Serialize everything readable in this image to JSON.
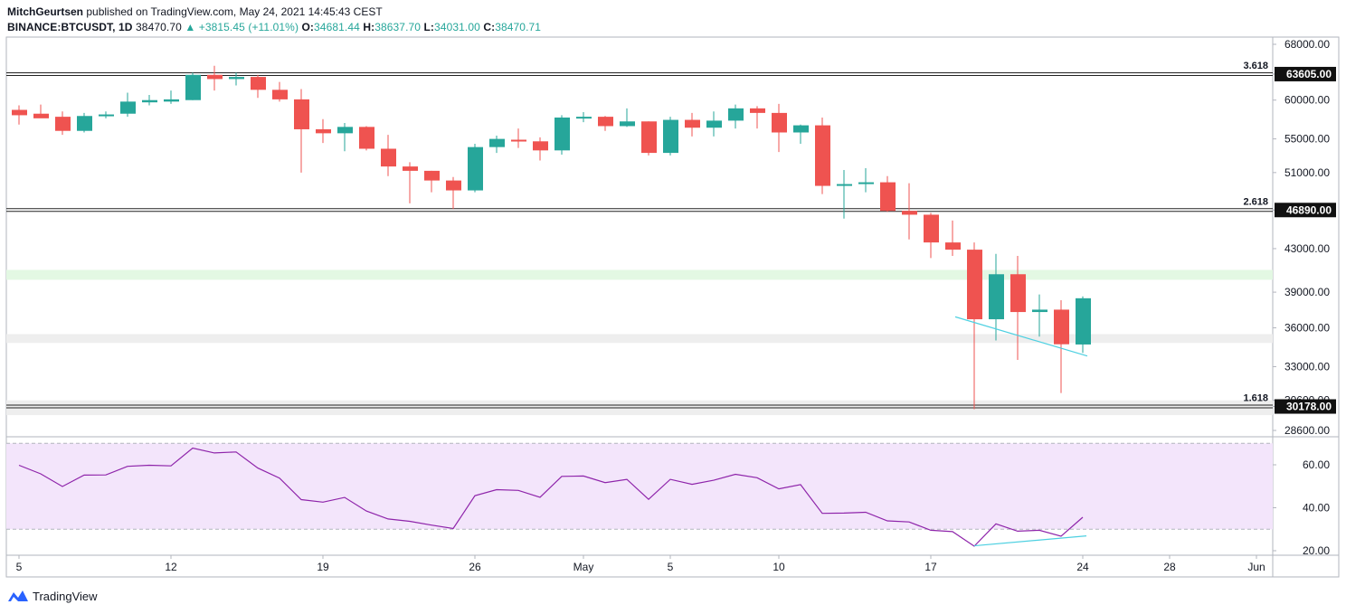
{
  "header": {
    "author": "MitchGeurtsen",
    "published": "published on TradingView.com, May 24, 2021 14:45:43 CEST",
    "symbol": "BINANCE:BTCUSDT, 1D",
    "last": "38470.70",
    "change": "▲ +3815.45 (+11.01%)",
    "o_label": "O:",
    "o": "34681.44",
    "h_label": "H:",
    "h": "38637.70",
    "l_label": "L:",
    "l": "34031.00",
    "c_label": "C:",
    "c": "38470.71"
  },
  "footer": {
    "brand": "TradingView"
  },
  "colors": {
    "up": "#26a69a",
    "down": "#ef5350",
    "rsi": "#8e24aa",
    "trend": "#4dd0e1",
    "rsi_band": "#f3e5fb",
    "green_zone": "#e3f8e3",
    "gray_zone": "#eeeeee"
  },
  "chart_data": {
    "type": "candlestick",
    "price_axis_ticks": [
      "68000.00",
      "63605.00",
      "60000.00",
      "55000.00",
      "51000.00",
      "46890.00",
      "43000.00",
      "39000.00",
      "36000.00",
      "33000.00",
      "30600.00",
      "30178.00",
      "28600.00"
    ],
    "rsi_axis_ticks": [
      "60.00",
      "40.00",
      "20.00"
    ],
    "x_tick_labels": [
      "5",
      "12",
      "19",
      "26",
      "May",
      "5",
      "10",
      "17",
      "24",
      "28",
      "Jun"
    ],
    "fib_levels": [
      {
        "label": "3.618",
        "value": 63605
      },
      {
        "label": "2.618",
        "value": 46890
      },
      {
        "label": "1.618",
        "value": 30178
      }
    ],
    "zones": [
      {
        "name": "green",
        "from": 40100,
        "to": 41000
      },
      {
        "name": "gray",
        "from": 34800,
        "to": 35500
      },
      {
        "name": "gray",
        "from": 29600,
        "to": 30600
      }
    ],
    "candles": [
      {
        "date": "2021-04-05",
        "o": 58700,
        "h": 59300,
        "l": 56800,
        "c": 58000
      },
      {
        "date": "2021-04-06",
        "o": 58200,
        "h": 59400,
        "l": 57700,
        "c": 57600
      },
      {
        "date": "2021-04-07",
        "o": 57800,
        "h": 58500,
        "l": 55500,
        "c": 56000
      },
      {
        "date": "2021-04-08",
        "o": 56000,
        "h": 58300,
        "l": 55800,
        "c": 57900
      },
      {
        "date": "2021-04-09",
        "o": 57900,
        "h": 58500,
        "l": 57600,
        "c": 58100
      },
      {
        "date": "2021-04-10",
        "o": 58200,
        "h": 61000,
        "l": 57800,
        "c": 59800
      },
      {
        "date": "2021-04-11",
        "o": 59700,
        "h": 60700,
        "l": 59300,
        "c": 60000
      },
      {
        "date": "2021-04-12",
        "o": 59800,
        "h": 61300,
        "l": 59500,
        "c": 60100
      },
      {
        "date": "2021-04-13",
        "o": 60000,
        "h": 63800,
        "l": 60000,
        "c": 63500
      },
      {
        "date": "2021-04-14",
        "o": 63500,
        "h": 64800,
        "l": 61300,
        "c": 62900
      },
      {
        "date": "2021-04-15",
        "o": 62900,
        "h": 63800,
        "l": 62000,
        "c": 63200
      },
      {
        "date": "2021-04-16",
        "o": 63200,
        "h": 63500,
        "l": 60300,
        "c": 61400
      },
      {
        "date": "2021-04-17",
        "o": 61400,
        "h": 62500,
        "l": 59800,
        "c": 60100
      },
      {
        "date": "2021-04-18",
        "o": 60100,
        "h": 61500,
        "l": 51000,
        "c": 56200
      },
      {
        "date": "2021-04-19",
        "o": 56200,
        "h": 57500,
        "l": 54500,
        "c": 55700
      },
      {
        "date": "2021-04-20",
        "o": 55700,
        "h": 57000,
        "l": 53500,
        "c": 56500
      },
      {
        "date": "2021-04-21",
        "o": 56500,
        "h": 56600,
        "l": 53600,
        "c": 53800
      },
      {
        "date": "2021-04-22",
        "o": 53800,
        "h": 55500,
        "l": 50600,
        "c": 51700
      },
      {
        "date": "2021-04-23",
        "o": 51700,
        "h": 52200,
        "l": 47600,
        "c": 51200
      },
      {
        "date": "2021-04-24",
        "o": 51200,
        "h": 51200,
        "l": 48800,
        "c": 50100
      },
      {
        "date": "2021-04-25",
        "o": 50100,
        "h": 50500,
        "l": 47000,
        "c": 49000
      },
      {
        "date": "2021-04-26",
        "o": 49000,
        "h": 54400,
        "l": 48800,
        "c": 54000
      },
      {
        "date": "2021-04-27",
        "o": 54000,
        "h": 55400,
        "l": 53300,
        "c": 55000
      },
      {
        "date": "2021-04-28",
        "o": 54900,
        "h": 56300,
        "l": 53900,
        "c": 54700
      },
      {
        "date": "2021-04-29",
        "o": 54700,
        "h": 55200,
        "l": 52400,
        "c": 53600
      },
      {
        "date": "2021-04-30",
        "o": 53600,
        "h": 58000,
        "l": 53100,
        "c": 57700
      },
      {
        "date": "2021-05-01",
        "o": 57700,
        "h": 58400,
        "l": 57100,
        "c": 57800
      },
      {
        "date": "2021-05-02",
        "o": 57800,
        "h": 57900,
        "l": 56000,
        "c": 56600
      },
      {
        "date": "2021-05-03",
        "o": 56600,
        "h": 58900,
        "l": 56500,
        "c": 57200
      },
      {
        "date": "2021-05-04",
        "o": 57200,
        "h": 57200,
        "l": 53000,
        "c": 53300
      },
      {
        "date": "2021-05-05",
        "o": 53300,
        "h": 57800,
        "l": 53000,
        "c": 57400
      },
      {
        "date": "2021-05-06",
        "o": 57400,
        "h": 58300,
        "l": 55300,
        "c": 56400
      },
      {
        "date": "2021-05-07",
        "o": 56400,
        "h": 58500,
        "l": 55300,
        "c": 57300
      },
      {
        "date": "2021-05-08",
        "o": 57300,
        "h": 59400,
        "l": 56300,
        "c": 58900
      },
      {
        "date": "2021-05-09",
        "o": 58900,
        "h": 59200,
        "l": 56300,
        "c": 58300
      },
      {
        "date": "2021-05-10",
        "o": 58300,
        "h": 59500,
        "l": 53400,
        "c": 55800
      },
      {
        "date": "2021-05-11",
        "o": 55800,
        "h": 56800,
        "l": 54400,
        "c": 56700
      },
      {
        "date": "2021-05-12",
        "o": 56700,
        "h": 57700,
        "l": 48600,
        "c": 49500
      },
      {
        "date": "2021-05-13",
        "o": 49500,
        "h": 51300,
        "l": 46000,
        "c": 49700
      },
      {
        "date": "2021-05-14",
        "o": 49700,
        "h": 51500,
        "l": 48800,
        "c": 49900
      },
      {
        "date": "2021-05-15",
        "o": 49900,
        "h": 50600,
        "l": 46700,
        "c": 46800
      },
      {
        "date": "2021-05-16",
        "o": 46800,
        "h": 49800,
        "l": 43900,
        "c": 46400
      },
      {
        "date": "2021-05-17",
        "o": 46400,
        "h": 46600,
        "l": 42100,
        "c": 43600
      },
      {
        "date": "2021-05-18",
        "o": 43600,
        "h": 45800,
        "l": 42300,
        "c": 42900
      },
      {
        "date": "2021-05-19",
        "o": 42900,
        "h": 43600,
        "l": 30000,
        "c": 36700
      },
      {
        "date": "2021-05-20",
        "o": 36700,
        "h": 42500,
        "l": 35000,
        "c": 40600
      },
      {
        "date": "2021-05-21",
        "o": 40600,
        "h": 42300,
        "l": 33500,
        "c": 37300
      },
      {
        "date": "2021-05-22",
        "o": 37300,
        "h": 38800,
        "l": 35300,
        "c": 37500
      },
      {
        "date": "2021-05-23",
        "o": 37500,
        "h": 38300,
        "l": 31100,
        "c": 34700
      },
      {
        "date": "2021-05-24",
        "o": 34681.44,
        "h": 38637.7,
        "l": 34031,
        "c": 38470.71
      }
    ],
    "rsi": [
      59.8,
      55.8,
      49.9,
      55.2,
      55.3,
      59.3,
      59.8,
      59.5,
      67.8,
      65.5,
      66.0,
      58.5,
      53.8,
      43.8,
      42.6,
      44.8,
      38.5,
      34.8,
      33.7,
      31.9,
      30.3,
      45.6,
      48.4,
      48.1,
      44.9,
      54.6,
      54.8,
      51.7,
      53.2,
      43.9,
      53.2,
      50.9,
      52.8,
      55.6,
      54.0,
      48.8,
      50.8,
      37.4,
      37.5,
      37.9,
      33.9,
      33.4,
      29.5,
      28.9,
      22.1,
      32.5,
      29.1,
      29.5,
      26.8,
      35.6
    ]
  }
}
